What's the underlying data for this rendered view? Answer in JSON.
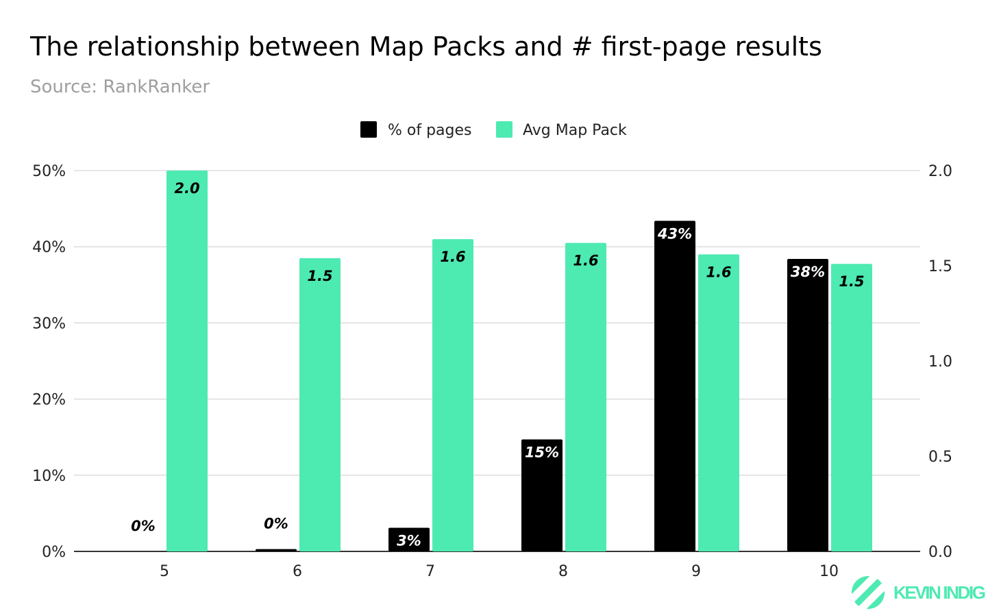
{
  "chart_data": {
    "type": "bar",
    "title": "The relationship between Map Packs and # first-page results",
    "subtitle": "Source: RankRanker",
    "categories": [
      "5",
      "6",
      "7",
      "8",
      "9",
      "10"
    ],
    "series": [
      {
        "name": "% of pages",
        "axis": "left",
        "color": "#000000",
        "values": [
          0,
          0.3,
          3.1,
          14.7,
          43.4,
          38.4
        ],
        "labels": [
          "0%",
          "0%",
          "3%",
          "15%",
          "43%",
          "38%"
        ]
      },
      {
        "name": "Avg Map Pack",
        "axis": "right",
        "color": "#4deab2",
        "values": [
          2.0,
          1.54,
          1.64,
          1.62,
          1.56,
          1.51
        ],
        "labels": [
          "2.0",
          "1.5",
          "1.6",
          "1.6",
          "1.6",
          "1.5"
        ]
      }
    ],
    "left_axis": {
      "ylim": [
        0,
        50
      ],
      "ticks": [
        "0%",
        "10%",
        "20%",
        "30%",
        "40%",
        "50%"
      ]
    },
    "right_axis": {
      "ylim": [
        0,
        2.0
      ],
      "ticks": [
        "0.0",
        "0.5",
        "1.0",
        "1.5",
        "2.0"
      ]
    },
    "grid": true,
    "legend": "top-center"
  },
  "branding": {
    "logo_text": "KEVIN INDIG",
    "color": "#4deab2"
  }
}
